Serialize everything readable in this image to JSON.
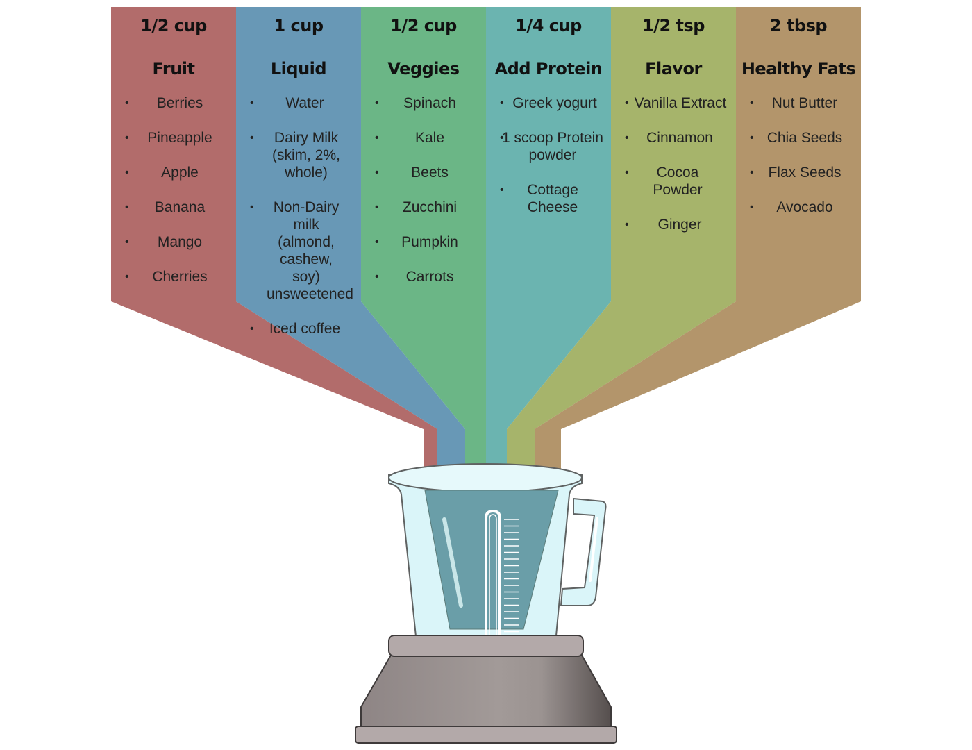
{
  "columns": [
    {
      "amount": "1/2 cup",
      "category": "Fruit",
      "color": "#b26c6b",
      "items": [
        "Berries",
        "Pineapple",
        "Apple",
        "Banana",
        "Mango",
        "Cherries"
      ]
    },
    {
      "amount": "1 cup",
      "category": "Liquid",
      "color": "#6898b6",
      "items": [
        "Water",
        "Dairy Milk (skim, 2%, whole)",
        "Non-Dairy milk (almond, cashew, soy) unsweetened",
        "Iced coffee"
      ]
    },
    {
      "amount": "1/2 cup",
      "category": "Veggies",
      "color": "#6bb686",
      "items": [
        "Spinach",
        "Kale",
        "Beets",
        "Zucchini",
        "Pumpkin",
        "Carrots"
      ]
    },
    {
      "amount": "1/4 cup",
      "category": "Add Protein",
      "color": "#6bb4b0",
      "items": [
        "Greek yogurt",
        "1 scoop Protein powder",
        "Cottage Cheese"
      ]
    },
    {
      "amount": "1/2 tsp",
      "category": "Flavor",
      "color": "#a6b46b",
      "items": [
        "Vanilla Extract",
        "Cinnamon",
        "Cocoa Powder",
        "Ginger"
      ]
    },
    {
      "amount": "2 tbsp",
      "category": "Healthy Fats",
      "color": "#b3956b",
      "items": [
        "Nut Butter",
        "Chia Seeds",
        "Flax Seeds",
        "Avocado"
      ]
    }
  ],
  "blender": {
    "jar_color": "#daf5f9",
    "liquid_color": "#6a9ea8",
    "base_color": "#9a9090"
  }
}
